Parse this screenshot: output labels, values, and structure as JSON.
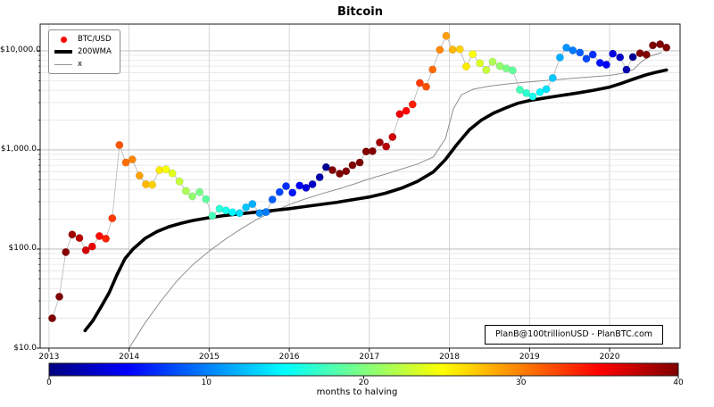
{
  "title": "Bitcoin",
  "watermark": "PlanB@100trillionUSD - PlanBTC.com",
  "legend": {
    "items": [
      {
        "label": "BTC/USD",
        "marker": "dot",
        "color": "#ff0000"
      },
      {
        "label": "200WMA",
        "marker": "thick-line",
        "color": "#000000"
      },
      {
        "label": "x",
        "marker": "thin-line",
        "color": "#909090"
      }
    ]
  },
  "axes": {
    "x_ticks": [
      2013,
      2014,
      2015,
      2016,
      2017,
      2018,
      2019,
      2020
    ],
    "y_ticks": [
      {
        "value": 10,
        "label": "$10.0"
      },
      {
        "value": 100,
        "label": "$100.0"
      },
      {
        "value": 1000,
        "label": "$1,000.0"
      },
      {
        "value": 10000,
        "label": "$10,000.0"
      }
    ],
    "y_scale": "log",
    "grid": true,
    "x_range": [
      2012.89,
      2020.88
    ],
    "y_range": [
      10,
      18600
    ]
  },
  "colorbar": {
    "label": "months to halving",
    "min": 0,
    "max": 40,
    "ticks": [
      0,
      10,
      20,
      30,
      40
    ],
    "colormap": "jet"
  },
  "chart_data": {
    "type": "scatter",
    "title": "Bitcoin",
    "xlabel": "",
    "ylabel": "",
    "color_by": "months_to_halving",
    "halvings": [
      2012.906,
      2016.521,
      2020.359,
      2024.33
    ],
    "series": [
      {
        "name": "BTC/USD",
        "style": "colored-dots-with-gray-connector",
        "points": [
          [
            2013.04,
            20
          ],
          [
            2013.13,
            33
          ],
          [
            2013.21,
            93
          ],
          [
            2013.29,
            140
          ],
          [
            2013.38,
            129
          ],
          [
            2013.46,
            97
          ],
          [
            2013.54,
            106
          ],
          [
            2013.63,
            135
          ],
          [
            2013.71,
            127
          ],
          [
            2013.79,
            204
          ],
          [
            2013.88,
            1120
          ],
          [
            2013.96,
            745
          ],
          [
            2014.04,
            800
          ],
          [
            2014.13,
            550
          ],
          [
            2014.21,
            450
          ],
          [
            2014.29,
            445
          ],
          [
            2014.38,
            625
          ],
          [
            2014.46,
            635
          ],
          [
            2014.54,
            580
          ],
          [
            2014.63,
            480
          ],
          [
            2014.71,
            385
          ],
          [
            2014.79,
            340
          ],
          [
            2014.88,
            375
          ],
          [
            2014.96,
            318
          ],
          [
            2015.04,
            216
          ],
          [
            2015.13,
            254
          ],
          [
            2015.21,
            245
          ],
          [
            2015.29,
            235
          ],
          [
            2015.38,
            230
          ],
          [
            2015.46,
            263
          ],
          [
            2015.54,
            284
          ],
          [
            2015.63,
            230
          ],
          [
            2015.71,
            236
          ],
          [
            2015.79,
            315
          ],
          [
            2015.88,
            375
          ],
          [
            2015.96,
            430
          ],
          [
            2016.04,
            370
          ],
          [
            2016.13,
            437
          ],
          [
            2016.21,
            415
          ],
          [
            2016.29,
            450
          ],
          [
            2016.38,
            530
          ],
          [
            2016.46,
            670
          ],
          [
            2016.54,
            625
          ],
          [
            2016.63,
            575
          ],
          [
            2016.71,
            610
          ],
          [
            2016.79,
            700
          ],
          [
            2016.88,
            745
          ],
          [
            2016.96,
            963
          ],
          [
            2017.04,
            970
          ],
          [
            2017.13,
            1190
          ],
          [
            2017.21,
            1080
          ],
          [
            2017.29,
            1350
          ],
          [
            2017.38,
            2300
          ],
          [
            2017.46,
            2480
          ],
          [
            2017.54,
            2875
          ],
          [
            2017.63,
            4735
          ],
          [
            2017.71,
            4340
          ],
          [
            2017.79,
            6470
          ],
          [
            2017.88,
            10230
          ],
          [
            2017.96,
            14160
          ],
          [
            2018.04,
            10280
          ],
          [
            2018.13,
            10360
          ],
          [
            2018.21,
            6940
          ],
          [
            2018.29,
            9240
          ],
          [
            2018.38,
            7500
          ],
          [
            2018.46,
            6400
          ],
          [
            2018.54,
            7750
          ],
          [
            2018.63,
            7020
          ],
          [
            2018.71,
            6630
          ],
          [
            2018.79,
            6340
          ],
          [
            2018.88,
            4040
          ],
          [
            2018.96,
            3740
          ],
          [
            2019.04,
            3460
          ],
          [
            2019.13,
            3820
          ],
          [
            2019.21,
            4100
          ],
          [
            2019.29,
            5320
          ],
          [
            2019.38,
            8560
          ],
          [
            2019.46,
            10760
          ],
          [
            2019.54,
            10090
          ],
          [
            2019.63,
            9600
          ],
          [
            2019.71,
            8310
          ],
          [
            2019.79,
            9150
          ],
          [
            2019.88,
            7550
          ],
          [
            2019.96,
            7240
          ],
          [
            2020.04,
            9350
          ],
          [
            2020.13,
            8600
          ],
          [
            2020.21,
            6440
          ],
          [
            2020.29,
            8650
          ],
          [
            2020.38,
            9450
          ],
          [
            2020.46,
            9140
          ],
          [
            2020.54,
            11350
          ],
          [
            2020.63,
            11650
          ],
          [
            2020.71,
            10780
          ]
        ]
      },
      {
        "name": "200WMA",
        "style": "thick-black-line",
        "points": [
          [
            2013.45,
            15
          ],
          [
            2013.55,
            19
          ],
          [
            2013.65,
            26
          ],
          [
            2013.75,
            36
          ],
          [
            2013.85,
            55
          ],
          [
            2013.95,
            80
          ],
          [
            2014.05,
            100
          ],
          [
            2014.2,
            128
          ],
          [
            2014.35,
            150
          ],
          [
            2014.5,
            168
          ],
          [
            2014.65,
            182
          ],
          [
            2014.8,
            194
          ],
          [
            2015.0,
            207
          ],
          [
            2015.2,
            218
          ],
          [
            2015.4,
            227
          ],
          [
            2015.6,
            236
          ],
          [
            2015.8,
            245
          ],
          [
            2016.0,
            255
          ],
          [
            2016.2,
            268
          ],
          [
            2016.4,
            282
          ],
          [
            2016.6,
            296
          ],
          [
            2016.8,
            315
          ],
          [
            2017.0,
            335
          ],
          [
            2017.2,
            365
          ],
          [
            2017.4,
            410
          ],
          [
            2017.6,
            480
          ],
          [
            2017.8,
            600
          ],
          [
            2017.95,
            800
          ],
          [
            2018.1,
            1150
          ],
          [
            2018.25,
            1600
          ],
          [
            2018.4,
            2000
          ],
          [
            2018.55,
            2350
          ],
          [
            2018.7,
            2650
          ],
          [
            2018.85,
            2950
          ],
          [
            2019.0,
            3150
          ],
          [
            2019.2,
            3350
          ],
          [
            2019.4,
            3550
          ],
          [
            2019.6,
            3750
          ],
          [
            2019.8,
            4000
          ],
          [
            2020.0,
            4300
          ],
          [
            2020.15,
            4700
          ],
          [
            2020.3,
            5200
          ],
          [
            2020.45,
            5700
          ],
          [
            2020.55,
            6000
          ],
          [
            2020.71,
            6400
          ]
        ]
      },
      {
        "name": "x",
        "style": "thin-gray-line",
        "points": [
          [
            2014.0,
            10
          ],
          [
            2014.2,
            18
          ],
          [
            2014.4,
            30
          ],
          [
            2014.6,
            48
          ],
          [
            2014.8,
            70
          ],
          [
            2015.0,
            95
          ],
          [
            2015.2,
            125
          ],
          [
            2015.4,
            160
          ],
          [
            2015.6,
            200
          ],
          [
            2015.8,
            240
          ],
          [
            2016.0,
            280
          ],
          [
            2016.2,
            320
          ],
          [
            2016.4,
            360
          ],
          [
            2016.6,
            400
          ],
          [
            2016.8,
            450
          ],
          [
            2017.0,
            510
          ],
          [
            2017.2,
            570
          ],
          [
            2017.4,
            640
          ],
          [
            2017.6,
            720
          ],
          [
            2017.8,
            850
          ],
          [
            2017.95,
            1300
          ],
          [
            2018.05,
            2600
          ],
          [
            2018.15,
            3600
          ],
          [
            2018.3,
            4100
          ],
          [
            2018.5,
            4400
          ],
          [
            2018.75,
            4650
          ],
          [
            2019.0,
            4850
          ],
          [
            2019.25,
            5050
          ],
          [
            2019.5,
            5250
          ],
          [
            2019.75,
            5450
          ],
          [
            2020.0,
            5650
          ],
          [
            2020.15,
            5900
          ],
          [
            2020.3,
            6500
          ],
          [
            2020.4,
            7800
          ],
          [
            2020.5,
            8800
          ],
          [
            2020.65,
            9600
          ]
        ]
      }
    ]
  }
}
